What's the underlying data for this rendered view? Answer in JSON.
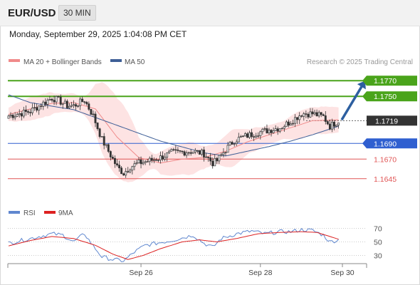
{
  "header": {
    "symbol": "EUR/USD",
    "timeframe": "30 MIN"
  },
  "datetime": "Monday, September 29, 2025 1:04:08 PM CET",
  "legend": {
    "ma20": "MA 20 + Bollinger Bands",
    "ma50": "MA 50",
    "source": "Research © 2025 Trading Central",
    "rsi": "RSI",
    "rsi_ma": "9MA"
  },
  "colors": {
    "target_green": "#4aa41b",
    "support_blue": "#2f5fd0",
    "support_red": "#e05555",
    "ma20": "#f08a8a",
    "ma50": "#3e5f97",
    "bands_fill": "#fde0e0",
    "candle": "#333333",
    "arrow": "#2d5fa0",
    "rsi_line": "#5f87cf",
    "rsi_ma": "#dd2222",
    "current_price_bg": "#333333"
  },
  "chart_data": [
    {
      "type": "candlestick",
      "y_range": [
        1.1633,
        1.1782
      ],
      "levels": [
        {
          "value": 1.177,
          "label": "1.1770",
          "kind": "target",
          "color": "#4aa41b"
        },
        {
          "value": 1.175,
          "label": "1.1750",
          "kind": "target",
          "color": "#4aa41b"
        },
        {
          "value": 1.1719,
          "label": "1.1719",
          "kind": "current",
          "color": "#333333"
        },
        {
          "value": 1.169,
          "label": "1.1690",
          "kind": "pivot",
          "color": "#2f5fd0"
        },
        {
          "value": 1.167,
          "label": "1.1670",
          "kind": "support",
          "color": "#e05555"
        },
        {
          "value": 1.1645,
          "label": "1.1645",
          "kind": "support",
          "color": "#e05555"
        }
      ],
      "x_ticks": [
        "Sep 26",
        "Sep 28",
        "Sep 30"
      ],
      "price_anchors": [
        [
          0,
          1.1725
        ],
        [
          10,
          1.1731
        ],
        [
          20,
          1.1748
        ],
        [
          23,
          1.1745
        ],
        [
          27,
          1.1738
        ],
        [
          30,
          1.1738
        ],
        [
          35,
          1.1745
        ],
        [
          39,
          1.1725
        ],
        [
          43,
          1.1695
        ],
        [
          46,
          1.168
        ],
        [
          50,
          1.166
        ],
        [
          53,
          1.1652
        ],
        [
          56,
          1.166
        ],
        [
          60,
          1.1665
        ],
        [
          65,
          1.1668
        ],
        [
          70,
          1.1672
        ],
        [
          75,
          1.1678
        ],
        [
          80,
          1.1679
        ],
        [
          85,
          1.168
        ],
        [
          90,
          1.1677
        ],
        [
          94,
          1.1665
        ],
        [
          96,
          1.1668
        ],
        [
          100,
          1.1682
        ],
        [
          104,
          1.1694
        ],
        [
          110,
          1.17
        ],
        [
          115,
          1.1704
        ],
        [
          120,
          1.1707
        ],
        [
          125,
          1.171
        ],
        [
          130,
          1.1718
        ],
        [
          135,
          1.1728
        ],
        [
          140,
          1.1728
        ],
        [
          145,
          1.1724
        ],
        [
          148,
          1.1712
        ],
        [
          152,
          1.1719
        ]
      ],
      "ma20": {
        "name": "MA 20",
        "anchors": [
          [
            0,
            1.1727
          ],
          [
            20,
            1.1741
          ],
          [
            30,
            1.1742
          ],
          [
            40,
            1.1734
          ],
          [
            50,
            1.1698
          ],
          [
            60,
            1.1672
          ],
          [
            70,
            1.1665
          ],
          [
            80,
            1.167
          ],
          [
            90,
            1.1672
          ],
          [
            100,
            1.168
          ],
          [
            110,
            1.1692
          ],
          [
            120,
            1.1701
          ],
          [
            130,
            1.171
          ],
          [
            140,
            1.1719
          ],
          [
            152,
            1.172
          ]
        ]
      },
      "ma50": {
        "name": "MA 50",
        "anchors": [
          [
            0,
            1.1752
          ],
          [
            10,
            1.1742
          ],
          [
            30,
            1.1733
          ],
          [
            50,
            1.1713
          ],
          [
            70,
            1.1693
          ],
          [
            90,
            1.1678
          ],
          [
            100,
            1.1674
          ],
          [
            110,
            1.168
          ],
          [
            120,
            1.1686
          ],
          [
            130,
            1.1693
          ],
          [
            140,
            1.1701
          ],
          [
            152,
            1.1712
          ]
        ]
      },
      "forecast_arrow": {
        "from": [
          1.172
        ],
        "to": [
          1.177
        ]
      }
    },
    {
      "type": "line",
      "title": "RSI",
      "y_ticks": [
        70,
        50,
        30
      ],
      "y_range": [
        20,
        80
      ],
      "rsi_anchors": [
        [
          0,
          48
        ],
        [
          10,
          55
        ],
        [
          20,
          62
        ],
        [
          25,
          60
        ],
        [
          30,
          50
        ],
        [
          35,
          62
        ],
        [
          39,
          44
        ],
        [
          43,
          28
        ],
        [
          48,
          24
        ],
        [
          53,
          22
        ],
        [
          58,
          35
        ],
        [
          63,
          45
        ],
        [
          68,
          48
        ],
        [
          75,
          52
        ],
        [
          80,
          56
        ],
        [
          85,
          60
        ],
        [
          90,
          48
        ],
        [
          94,
          42
        ],
        [
          98,
          55
        ],
        [
          105,
          62
        ],
        [
          112,
          66
        ],
        [
          118,
          62
        ],
        [
          125,
          65
        ],
        [
          130,
          65
        ],
        [
          135,
          68
        ],
        [
          140,
          67
        ],
        [
          145,
          60
        ],
        [
          148,
          50
        ],
        [
          152,
          53
        ]
      ],
      "ma9_anchors": [
        [
          0,
          44
        ],
        [
          10,
          52
        ],
        [
          20,
          58
        ],
        [
          30,
          55
        ],
        [
          40,
          45
        ],
        [
          48,
          32
        ],
        [
          55,
          24
        ],
        [
          62,
          30
        ],
        [
          70,
          40
        ],
        [
          80,
          50
        ],
        [
          88,
          53
        ],
        [
          96,
          50
        ],
        [
          105,
          55
        ],
        [
          115,
          62
        ],
        [
          125,
          64
        ],
        [
          135,
          65
        ],
        [
          142,
          64
        ],
        [
          148,
          58
        ],
        [
          152,
          54
        ]
      ]
    }
  ]
}
